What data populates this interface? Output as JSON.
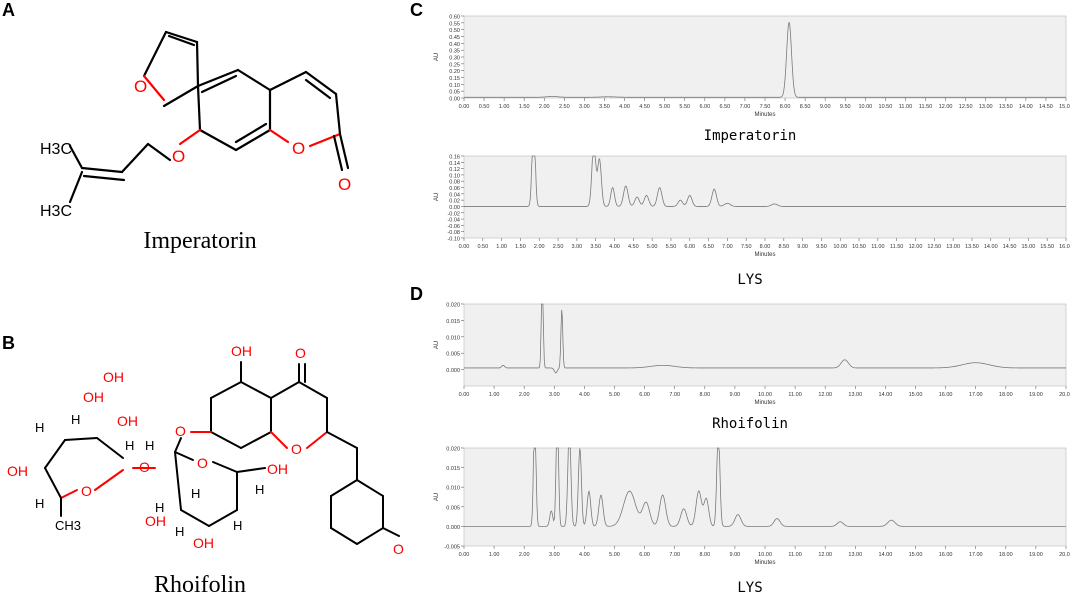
{
  "panels": {
    "A": {
      "letter": "A",
      "compound_name": "Imperatorin",
      "atoms": [
        "O",
        "O",
        "O",
        "O"
      ],
      "substituent_labels": [
        "H3C",
        "H3C"
      ]
    },
    "B": {
      "letter": "B",
      "compound_name": "Rhoifolin",
      "atoms": [
        "OH",
        "O",
        "O",
        "O",
        "O",
        "O",
        "O",
        "OH",
        "OH",
        "OH",
        "OH",
        "OH",
        "OH",
        "OH",
        "OH",
        "H",
        "H",
        "H",
        "H",
        "H",
        "H",
        "H",
        "H",
        "H",
        "H",
        "CH3"
      ]
    },
    "C": {
      "letter": "C"
    },
    "D": {
      "letter": "D"
    }
  },
  "colors": {
    "oxygen": "#ff0000",
    "bond": "#000000",
    "plot_bg": "#f0f0f0",
    "trace": "#7a7a7a"
  },
  "chart_data": [
    {
      "id": "C-top",
      "type": "line",
      "title": "Imperatorin",
      "xlabel": "Minutes",
      "ylabel": "AU",
      "xlim": [
        0,
        15
      ],
      "ylim": [
        0,
        0.6
      ],
      "xticks": [
        "0.00",
        "0.50",
        "1.00",
        "1.50",
        "2.00",
        "2.50",
        "3.00",
        "3.50",
        "4.00",
        "4.50",
        "5.00",
        "5.50",
        "6.00",
        "6.50",
        "7.00",
        "7.50",
        "8.00",
        "8.50",
        "9.00",
        "9.50",
        "10.00",
        "10.50",
        "11.00",
        "11.50",
        "12.00",
        "12.50",
        "13.00",
        "13.50",
        "14.00",
        "14.50",
        "15.00"
      ],
      "yticks": [
        "0.00",
        "0.05",
        "0.10",
        "0.15",
        "0.20",
        "0.25",
        "0.30",
        "0.35",
        "0.40",
        "0.45",
        "0.50",
        "0.55",
        "0.60"
      ],
      "baseline": 0.005,
      "peaks": [
        {
          "t": 2.2,
          "h": 0.006,
          "w": 0.15
        },
        {
          "t": 3.6,
          "h": 0.004,
          "w": 0.2
        },
        {
          "t": 8.1,
          "h": 0.55,
          "w": 0.06
        }
      ]
    },
    {
      "id": "C-bottom",
      "type": "line",
      "title": "LYS",
      "xlabel": "Minutes",
      "ylabel": "AU",
      "xlim": [
        0,
        16
      ],
      "ylim": [
        -0.1,
        0.16
      ],
      "xticks": [
        "0.00",
        "0.50",
        "1.00",
        "1.50",
        "2.00",
        "2.50",
        "3.00",
        "3.50",
        "4.00",
        "4.50",
        "5.00",
        "5.50",
        "6.00",
        "6.50",
        "7.00",
        "7.50",
        "8.00",
        "8.50",
        "9.00",
        "9.50",
        "10.00",
        "10.50",
        "11.00",
        "11.50",
        "12.00",
        "12.50",
        "13.00",
        "13.50",
        "14.00",
        "14.50",
        "15.00",
        "15.50",
        "16.00"
      ],
      "yticks": [
        "-0.10",
        "-0.08",
        "-0.06",
        "-0.04",
        "-0.02",
        "0.00",
        "0.02",
        "0.04",
        "0.06",
        "0.08",
        "0.10",
        "0.12",
        "0.14",
        "0.16"
      ],
      "baseline": 0.0,
      "peaks": [
        {
          "t": 1.85,
          "h": 0.3,
          "w": 0.04
        },
        {
          "t": 3.45,
          "h": 0.2,
          "w": 0.05
        },
        {
          "t": 3.6,
          "h": 0.15,
          "w": 0.05
        },
        {
          "t": 3.95,
          "h": 0.06,
          "w": 0.05
        },
        {
          "t": 4.3,
          "h": 0.065,
          "w": 0.06
        },
        {
          "t": 4.6,
          "h": 0.03,
          "w": 0.06
        },
        {
          "t": 4.85,
          "h": 0.035,
          "w": 0.06
        },
        {
          "t": 5.2,
          "h": 0.06,
          "w": 0.06
        },
        {
          "t": 5.75,
          "h": 0.02,
          "w": 0.06
        },
        {
          "t": 6.0,
          "h": 0.035,
          "w": 0.06
        },
        {
          "t": 6.65,
          "h": 0.055,
          "w": 0.06
        },
        {
          "t": 7.0,
          "h": 0.01,
          "w": 0.08
        },
        {
          "t": 8.25,
          "h": 0.008,
          "w": 0.08
        }
      ]
    },
    {
      "id": "D-top",
      "type": "line",
      "title": "Rhoifolin",
      "xlabel": "Minutes",
      "ylabel": "AU",
      "xlim": [
        0,
        20
      ],
      "ylim": [
        -0.005,
        0.02
      ],
      "xticks": [
        "0.00",
        "1.00",
        "2.00",
        "3.00",
        "4.00",
        "5.00",
        "6.00",
        "7.00",
        "8.00",
        "9.00",
        "10.00",
        "11.00",
        "12.00",
        "13.00",
        "14.00",
        "15.00",
        "16.00",
        "17.00",
        "18.00",
        "19.00",
        "20.00"
      ],
      "yticks": [
        "0.000",
        "0.005",
        "0.010",
        "0.015",
        "0.020"
      ],
      "baseline": 0.0005,
      "peaks": [
        {
          "t": 1.3,
          "h": 0.0008,
          "w": 0.05
        },
        {
          "t": 2.6,
          "h": 0.03,
          "w": 0.03
        },
        {
          "t": 3.05,
          "h": -0.0015,
          "w": 0.05
        },
        {
          "t": 3.25,
          "h": 0.018,
          "w": 0.03
        },
        {
          "t": 6.6,
          "h": 0.0008,
          "w": 0.4
        },
        {
          "t": 12.65,
          "h": 0.0025,
          "w": 0.12
        },
        {
          "t": 17.0,
          "h": 0.0016,
          "w": 0.45
        }
      ]
    },
    {
      "id": "D-bottom",
      "type": "line",
      "title": "LYS",
      "xlabel": "Minutes",
      "ylabel": "AU",
      "xlim": [
        0,
        20
      ],
      "ylim": [
        -0.005,
        0.02
      ],
      "xticks": [
        "0.00",
        "1.00",
        "2.00",
        "3.00",
        "4.00",
        "5.00",
        "6.00",
        "7.00",
        "8.00",
        "9.00",
        "10.00",
        "11.00",
        "12.00",
        "13.00",
        "14.00",
        "15.00",
        "16.00",
        "17.00",
        "18.00",
        "19.00",
        "20.00"
      ],
      "yticks": [
        "-0.005",
        "0.000",
        "0.005",
        "0.010",
        "0.015",
        "0.020"
      ],
      "baseline": 0.0,
      "peaks": [
        {
          "t": 2.35,
          "h": 0.03,
          "w": 0.04
        },
        {
          "t": 2.9,
          "h": 0.004,
          "w": 0.05
        },
        {
          "t": 3.1,
          "h": 0.03,
          "w": 0.04
        },
        {
          "t": 3.5,
          "h": 0.025,
          "w": 0.05
        },
        {
          "t": 3.85,
          "h": 0.02,
          "w": 0.05
        },
        {
          "t": 4.15,
          "h": 0.009,
          "w": 0.06
        },
        {
          "t": 4.55,
          "h": 0.008,
          "w": 0.07
        },
        {
          "t": 5.5,
          "h": 0.009,
          "w": 0.2
        },
        {
          "t": 6.05,
          "h": 0.006,
          "w": 0.12
        },
        {
          "t": 6.6,
          "h": 0.008,
          "w": 0.1
        },
        {
          "t": 7.3,
          "h": 0.0045,
          "w": 0.1
        },
        {
          "t": 7.8,
          "h": 0.009,
          "w": 0.09
        },
        {
          "t": 8.05,
          "h": 0.007,
          "w": 0.08
        },
        {
          "t": 8.45,
          "h": 0.025,
          "w": 0.05
        },
        {
          "t": 9.1,
          "h": 0.003,
          "w": 0.1
        },
        {
          "t": 10.4,
          "h": 0.002,
          "w": 0.1
        },
        {
          "t": 12.5,
          "h": 0.0012,
          "w": 0.1
        },
        {
          "t": 14.2,
          "h": 0.0016,
          "w": 0.12
        }
      ]
    }
  ]
}
